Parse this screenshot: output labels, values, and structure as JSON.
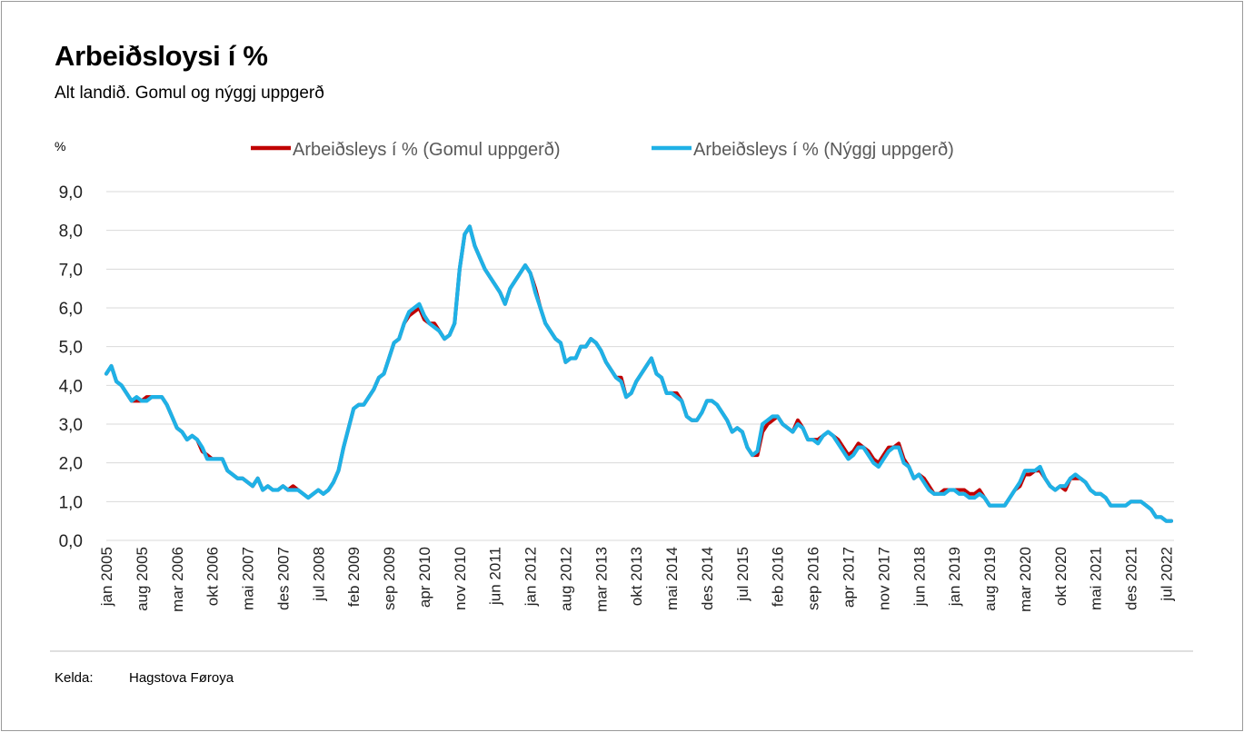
{
  "title": "Arbeiðsloysi í %",
  "subtitle": "Alt landið. Gomul og nýggj uppgerð",
  "unit_label": "%",
  "source": {
    "label": "Kelda:",
    "value": "Hagstova Føroya"
  },
  "chart_data": {
    "type": "line",
    "title": "Arbeiðsloysi í %",
    "xlabel": "",
    "ylabel": "%",
    "ylim": [
      0,
      9
    ],
    "grid": true,
    "legend_position": "top",
    "yticks": [
      "0,0",
      "1,0",
      "2,0",
      "3,0",
      "4,0",
      "5,0",
      "6,0",
      "7,0",
      "8,0",
      "9,0"
    ],
    "xticks": [
      {
        "index": 0,
        "label": "jan 2005"
      },
      {
        "index": 7,
        "label": "aug 2005"
      },
      {
        "index": 14,
        "label": "mar 2006"
      },
      {
        "index": 21,
        "label": "okt 2006"
      },
      {
        "index": 28,
        "label": "mai 2007"
      },
      {
        "index": 35,
        "label": "des 2007"
      },
      {
        "index": 42,
        "label": "jul 2008"
      },
      {
        "index": 49,
        "label": "feb 2009"
      },
      {
        "index": 56,
        "label": "sep 2009"
      },
      {
        "index": 63,
        "label": "apr 2010"
      },
      {
        "index": 70,
        "label": "nov 2010"
      },
      {
        "index": 77,
        "label": "jun 2011"
      },
      {
        "index": 84,
        "label": "jan 2012"
      },
      {
        "index": 91,
        "label": "aug 2012"
      },
      {
        "index": 98,
        "label": "mar 2013"
      },
      {
        "index": 105,
        "label": "okt 2013"
      },
      {
        "index": 112,
        "label": "mai 2014"
      },
      {
        "index": 119,
        "label": "des 2014"
      },
      {
        "index": 126,
        "label": "jul 2015"
      },
      {
        "index": 133,
        "label": "feb 2016"
      },
      {
        "index": 140,
        "label": "sep 2016"
      },
      {
        "index": 147,
        "label": "apr 2017"
      },
      {
        "index": 154,
        "label": "nov 2017"
      },
      {
        "index": 161,
        "label": "jun 2018"
      },
      {
        "index": 168,
        "label": "jan 2019"
      },
      {
        "index": 175,
        "label": "aug 2019"
      },
      {
        "index": 182,
        "label": "mar 2020"
      },
      {
        "index": 189,
        "label": "okt 2020"
      },
      {
        "index": 196,
        "label": "mai 2021"
      },
      {
        "index": 203,
        "label": "des 2021"
      },
      {
        "index": 210,
        "label": "jul 2022"
      }
    ],
    "series": [
      {
        "name": "Arbeiðsleys í % (Gomul uppgerð)",
        "color": "#c00000",
        "values": [
          4.3,
          4.5,
          4.1,
          4.0,
          3.8,
          3.6,
          3.6,
          3.6,
          3.7,
          3.7,
          3.7,
          3.7,
          3.5,
          3.2,
          2.9,
          2.8,
          2.6,
          2.7,
          2.6,
          2.3,
          2.2,
          2.1,
          2.1,
          2.1,
          1.8,
          1.7,
          1.6,
          1.6,
          1.5,
          1.4,
          1.6,
          1.3,
          1.4,
          1.3,
          1.3,
          1.4,
          1.3,
          1.4,
          1.3,
          1.2,
          1.1,
          1.2,
          1.3,
          1.2,
          1.3,
          1.5,
          1.8,
          2.4,
          2.9,
          3.4,
          3.5,
          3.5,
          3.7,
          3.9,
          4.2,
          4.3,
          4.7,
          5.1,
          5.2,
          5.6,
          5.8,
          5.9,
          6.0,
          5.7,
          5.6,
          5.6,
          5.4,
          5.2,
          5.3,
          5.6,
          7.0,
          7.9,
          8.1,
          7.6,
          7.3,
          7.0,
          6.8,
          6.6,
          6.4,
          6.1,
          6.5,
          6.7,
          6.9,
          7.1,
          6.9,
          6.5,
          6.0,
          5.6,
          5.4,
          5.2,
          5.1,
          4.6,
          4.7,
          4.7,
          5.0,
          5.0,
          5.2,
          5.1,
          4.9,
          4.6,
          4.4,
          4.2,
          4.2,
          3.7,
          3.8,
          4.1,
          4.3,
          4.5,
          4.7,
          4.3,
          4.2,
          3.8,
          3.8,
          3.8,
          3.6,
          3.2,
          3.1,
          3.1,
          3.3,
          3.6,
          3.6,
          3.5,
          3.3,
          3.1,
          2.8,
          2.9,
          2.8,
          2.4,
          2.2,
          2.2,
          2.8,
          3.0,
          3.1,
          3.2,
          3.0,
          2.9,
          2.8,
          3.1,
          2.9,
          2.6,
          2.6,
          2.6,
          2.7,
          2.8,
          2.7,
          2.6,
          2.4,
          2.2,
          2.3,
          2.5,
          2.4,
          2.3,
          2.1,
          2.0,
          2.2,
          2.4,
          2.4,
          2.5,
          2.1,
          1.9,
          1.6,
          1.7,
          1.6,
          1.4,
          1.2,
          1.2,
          1.3,
          1.3,
          1.3,
          1.3,
          1.3,
          1.2,
          1.2,
          1.3,
          1.1,
          0.9,
          0.9,
          0.9,
          0.9,
          1.1,
          1.3,
          1.4,
          1.7,
          1.7,
          1.8,
          1.8,
          1.6,
          1.4,
          1.3,
          1.4,
          1.3,
          1.6,
          1.6,
          1.6,
          1.5,
          1.3,
          1.2,
          1.2,
          1.1,
          0.9,
          0.9,
          0.9,
          0.9,
          1.0,
          1.0,
          1.0,
          0.9,
          0.8,
          0.6,
          0.6,
          0.5,
          0.5
        ]
      },
      {
        "name": "Arbeiðsleys í % (Nýggj uppgerð)",
        "color": "#1fb1e6",
        "values": [
          4.3,
          4.5,
          4.1,
          4.0,
          3.8,
          3.6,
          3.7,
          3.6,
          3.6,
          3.7,
          3.7,
          3.7,
          3.5,
          3.2,
          2.9,
          2.8,
          2.6,
          2.7,
          2.6,
          2.4,
          2.1,
          2.1,
          2.1,
          2.1,
          1.8,
          1.7,
          1.6,
          1.6,
          1.5,
          1.4,
          1.6,
          1.3,
          1.4,
          1.3,
          1.3,
          1.4,
          1.3,
          1.3,
          1.3,
          1.2,
          1.1,
          1.2,
          1.3,
          1.2,
          1.3,
          1.5,
          1.8,
          2.4,
          2.9,
          3.4,
          3.5,
          3.5,
          3.7,
          3.9,
          4.2,
          4.3,
          4.7,
          5.1,
          5.2,
          5.6,
          5.9,
          6.0,
          6.1,
          5.8,
          5.6,
          5.5,
          5.4,
          5.2,
          5.3,
          5.6,
          7.0,
          7.9,
          8.1,
          7.6,
          7.3,
          7.0,
          6.8,
          6.6,
          6.4,
          6.1,
          6.5,
          6.7,
          6.9,
          7.1,
          6.9,
          6.4,
          6.0,
          5.6,
          5.4,
          5.2,
          5.1,
          4.6,
          4.7,
          4.7,
          5.0,
          5.0,
          5.2,
          5.1,
          4.9,
          4.6,
          4.4,
          4.2,
          4.1,
          3.7,
          3.8,
          4.1,
          4.3,
          4.5,
          4.7,
          4.3,
          4.2,
          3.8,
          3.8,
          3.7,
          3.6,
          3.2,
          3.1,
          3.1,
          3.3,
          3.6,
          3.6,
          3.5,
          3.3,
          3.1,
          2.8,
          2.9,
          2.8,
          2.4,
          2.2,
          2.3,
          3.0,
          3.1,
          3.2,
          3.2,
          3.0,
          2.9,
          2.8,
          3.0,
          2.9,
          2.6,
          2.6,
          2.5,
          2.7,
          2.8,
          2.7,
          2.5,
          2.3,
          2.1,
          2.2,
          2.4,
          2.4,
          2.2,
          2.0,
          1.9,
          2.1,
          2.3,
          2.4,
          2.4,
          2.0,
          1.9,
          1.6,
          1.7,
          1.5,
          1.3,
          1.2,
          1.2,
          1.2,
          1.3,
          1.3,
          1.2,
          1.2,
          1.1,
          1.1,
          1.2,
          1.1,
          0.9,
          0.9,
          0.9,
          0.9,
          1.1,
          1.3,
          1.5,
          1.8,
          1.8,
          1.8,
          1.9,
          1.6,
          1.4,
          1.3,
          1.4,
          1.4,
          1.6,
          1.7,
          1.6,
          1.5,
          1.3,
          1.2,
          1.2,
          1.1,
          0.9,
          0.9,
          0.9,
          0.9,
          1.0,
          1.0,
          1.0,
          0.9,
          0.8,
          0.6,
          0.6,
          0.5,
          0.5
        ]
      }
    ]
  }
}
